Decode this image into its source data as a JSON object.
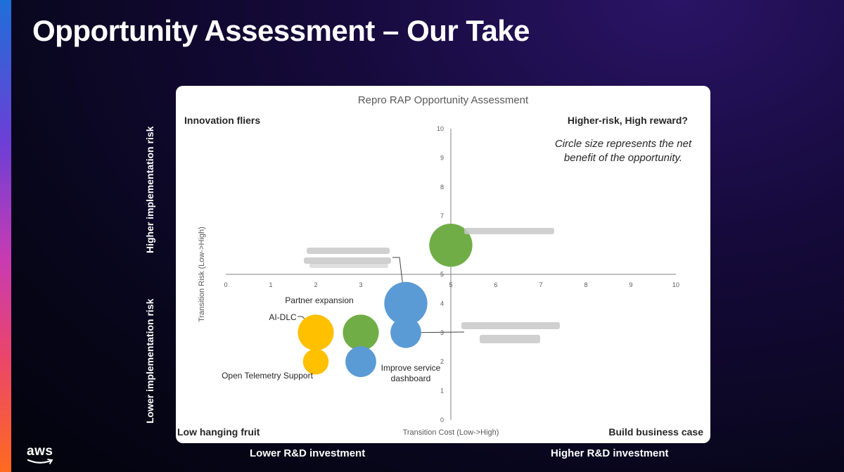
{
  "slide": {
    "title": "Opportunity Assessment – Our Take",
    "left_axis_upper": "Higher implementation risk",
    "left_axis_lower": "Lower implementation risk",
    "bottom_left": "Lower R&D investment",
    "bottom_right": "Higher R&D investment",
    "logo_text": "aws"
  },
  "colors": {
    "yellow": "#FFC000",
    "green": "#70AD47",
    "blue": "#5B9BD5",
    "axis": "#808080",
    "tick_text": "#595959"
  },
  "chart_data": {
    "type": "scatter",
    "title": "Repro RAP Opportunity Assessment",
    "xlabel": "Transition Cost (Low->High)",
    "ylabel": "Transition Risk (Low->High)",
    "xlim": [
      0,
      10
    ],
    "ylim": [
      0,
      10
    ],
    "x_ticks": [
      "0",
      "1",
      "2",
      "3",
      "4",
      "5",
      "6",
      "7",
      "8",
      "9",
      "10"
    ],
    "y_ticks": [
      "0",
      "1",
      "2",
      "3",
      "4",
      "5",
      "6",
      "7",
      "8",
      "9",
      "10"
    ],
    "axis_cross": {
      "x": 5,
      "y": 5
    },
    "grid": false,
    "legend": "none",
    "quadrants": {
      "top_left": "Innovation fliers",
      "top_right": "Higher-risk, High reward?",
      "bottom_left": "Low hanging fruit",
      "bottom_right": "Build business case"
    },
    "note_line1": "Circle size represents the net",
    "note_line2": "benefit of the opportunity.",
    "bubbles": [
      {
        "x": 2.0,
        "y": 3.0,
        "size": 3.5,
        "color": "yellow",
        "label": "AI-DLC"
      },
      {
        "x": 2.0,
        "y": 2.0,
        "size": 2.5,
        "color": "yellow",
        "label": "Open Telemetry Support"
      },
      {
        "x": 3.0,
        "y": 3.0,
        "size": 3.5,
        "color": "green",
        "label": "Partner expansion"
      },
      {
        "x": 3.0,
        "y": 2.0,
        "size": 3.0,
        "color": "blue",
        "label": ""
      },
      {
        "x": 4.0,
        "y": 4.0,
        "size": 4.2,
        "color": "blue",
        "label": ""
      },
      {
        "x": 4.0,
        "y": 3.0,
        "size": 3.0,
        "color": "blue",
        "label": "Improve service dashboard"
      },
      {
        "x": 5.0,
        "y": 6.0,
        "size": 4.2,
        "color": "green",
        "label": ""
      }
    ]
  }
}
